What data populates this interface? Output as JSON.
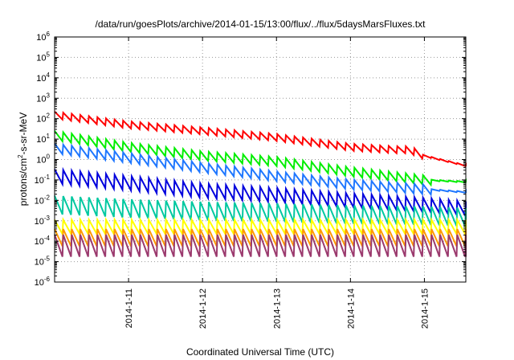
{
  "chart_data": {
    "type": "line",
    "title": "/data/run/goesPlots/archive/2014-01-15/13:00/flux/../flux/5daysMarsFluxes.txt",
    "xlabel": "Coordinated Universal Time (UTC)",
    "ylabel": "protons/cm2-s-sr-MeV",
    "ylabel_parts": [
      "protons/cm",
      "2",
      "-s-sr-MeV"
    ],
    "xscale": "time",
    "yscale": "log",
    "xlim": [
      "2014-01-10",
      "2014-01-15.56"
    ],
    "ylim": [
      1e-06,
      1000000.0
    ],
    "x_ticks": [
      "2014-1-11",
      "2014-1-12",
      "2014-1-13",
      "2014-1-14",
      "2014-1-15"
    ],
    "x_tick_dates": [
      "2014-01-11",
      "2014-01-12",
      "2014-01-13",
      "2014-01-14",
      "2014-01-15"
    ],
    "y_ticks": [
      {
        "base": "10",
        "exp": "-6"
      },
      {
        "base": "10",
        "exp": "-5"
      },
      {
        "base": "10",
        "exp": "-4"
      },
      {
        "base": "10",
        "exp": "-3"
      },
      {
        "base": "10",
        "exp": "-2"
      },
      {
        "base": "10",
        "exp": "-1"
      },
      {
        "base": "10",
        "exp": "0"
      },
      {
        "base": "10",
        "exp": "1"
      },
      {
        "base": "10",
        "exp": "2"
      },
      {
        "base": "10",
        "exp": "3"
      },
      {
        "base": "10",
        "exp": "4"
      },
      {
        "base": "10",
        "exp": "5"
      },
      {
        "base": "10",
        "exp": "6"
      }
    ],
    "grid": "dotted",
    "sawtooth_periods": 48,
    "series": [
      {
        "color": "#ff0000",
        "trend": [
          [
            0,
            150
          ],
          [
            1,
            50
          ],
          [
            2,
            25
          ],
          [
            3,
            12
          ],
          [
            4,
            4
          ],
          [
            4.6,
            3
          ],
          [
            4.8,
            3
          ],
          [
            5,
            1.5
          ],
          [
            5.56,
            0.5
          ]
        ],
        "sawtooth_ratio": 2.2,
        "smooth_after": 4.9
      },
      {
        "color": "#00ee00",
        "trend": [
          [
            0,
            15
          ],
          [
            1,
            4
          ],
          [
            2,
            1.5
          ],
          [
            3,
            0.8
          ],
          [
            4,
            0.25
          ],
          [
            5,
            0.1
          ],
          [
            5.56,
            0.08
          ]
        ],
        "sawtooth_ratio": 2.8,
        "smooth_after": 5.0
      },
      {
        "color": "#1f77ff",
        "trend": [
          [
            0,
            3.5
          ],
          [
            1,
            1.2
          ],
          [
            2,
            0.4
          ],
          [
            3,
            0.15
          ],
          [
            4,
            0.06
          ],
          [
            5,
            0.035
          ],
          [
            5.56,
            0.025
          ]
        ],
        "sawtooth_ratio": 3.0,
        "smooth_after": 5.0
      },
      {
        "color": "#0000dd",
        "trend": [
          [
            0,
            0.15
          ],
          [
            1,
            0.07
          ],
          [
            2,
            0.03
          ],
          [
            3,
            0.018
          ],
          [
            4,
            0.01
          ],
          [
            5,
            0.006
          ],
          [
            5.56,
            0.004
          ]
        ],
        "sawtooth_ratio": 5.0
      },
      {
        "color": "#00c8a0",
        "trend": [
          [
            0,
            0.006
          ],
          [
            1,
            0.004
          ],
          [
            2,
            0.003
          ],
          [
            3,
            0.0025
          ],
          [
            4,
            0.002
          ],
          [
            5,
            0.0018
          ],
          [
            5.56,
            0.0015
          ]
        ],
        "sawtooth_ratio": 8.0
      },
      {
        "color": "#ffff00",
        "trend": [
          [
            0,
            0.0005
          ],
          [
            2,
            0.0005
          ],
          [
            4,
            0.0005
          ],
          [
            5.56,
            0.0005
          ]
        ],
        "sawtooth_ratio": 5.0
      },
      {
        "color": "#ff9900",
        "trend": [
          [
            0,
            0.00015
          ],
          [
            2,
            0.00015
          ],
          [
            4,
            0.00015
          ],
          [
            5.56,
            0.00015
          ]
        ],
        "sawtooth_ratio": 7.0
      },
      {
        "color": "#9b3a6e",
        "trend": [
          [
            0,
            6e-05
          ],
          [
            2,
            6e-05
          ],
          [
            4,
            6e-05
          ],
          [
            5.56,
            6e-05
          ]
        ],
        "sawtooth_ratio": 12.0
      }
    ]
  }
}
